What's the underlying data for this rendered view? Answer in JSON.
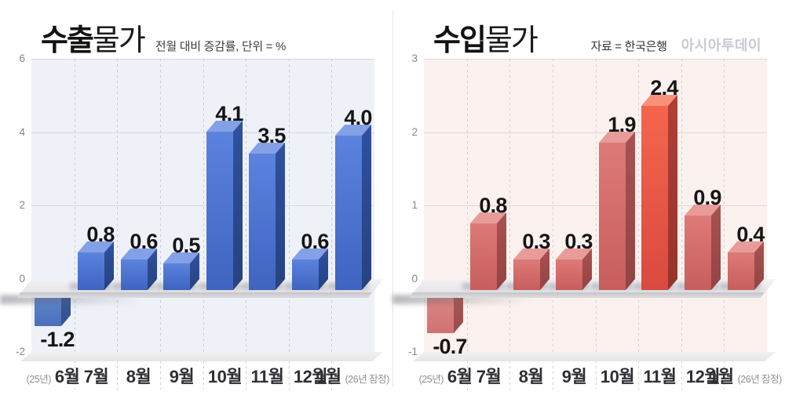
{
  "page": {
    "background": "#ffffff",
    "divider_color": "#e4e4e8"
  },
  "floor": {
    "surface_top": "#f3f3f5",
    "surface_bottom": "#e4e4e8",
    "bevel_top": "#c6c6cb",
    "bevel_bottom": "#dddde0",
    "strip_top": "#f0f0f2",
    "strip_bottom": "#e6e6e9",
    "shadow": "rgba(96,98,108,0.45)",
    "bar_shadow": "rgba(70,76,95,0.28)"
  },
  "chart_data": [
    {
      "type": "bar",
      "title": "수출물가",
      "title_bold": "수출",
      "title_regular": "물가",
      "subtitle": "전월 대비 증감률, 단위 = %",
      "source": "",
      "brand": "",
      "categories": [
        "6월",
        "7월",
        "8월",
        "9월",
        "10월",
        "11월",
        "12월",
        "1월"
      ],
      "first_category_prefix": "(25년)",
      "last_category_suffix": "(26년 잠정)",
      "values": [
        -1.2,
        0.8,
        0.6,
        0.5,
        4.1,
        3.5,
        0.6,
        4.0
      ],
      "value_labels": [
        "-1.2",
        "0.8",
        "0.6",
        "0.5",
        "4.1",
        "3.5",
        "0.6",
        "4.0"
      ],
      "xlabel": "",
      "ylabel": "",
      "ylim": [
        -2,
        6
      ],
      "yticks": [
        6,
        4,
        2,
        0,
        -2
      ],
      "ytick_labels": [
        "6",
        "4",
        "2",
        "0",
        "-2"
      ],
      "grid": true,
      "legend": null,
      "highlight_index": null,
      "colors": {
        "plot_bg": "#eef1f8",
        "grid": "#d6d8dd",
        "dash": "#c7cad2",
        "bar_front_top": "#5b83de",
        "bar_front_bottom": "#3e64c0",
        "bar_top_face": "#84a0e7",
        "bar_side_top": "#30509f",
        "bar_side_bottom": "#264280",
        "neg_front_top": "#6189d1",
        "neg_front_bottom": "#4b70ba",
        "neg_side_top": "#3a5c9e",
        "neg_side_bottom": "#32508b"
      }
    },
    {
      "type": "bar",
      "title": "수입물가",
      "title_bold": "수입",
      "title_regular": "물가",
      "subtitle": "",
      "source": "자료 = 한국은행",
      "brand": "아시아투데이",
      "categories": [
        "6월",
        "7월",
        "8월",
        "9월",
        "10월",
        "11월",
        "12월",
        "1월"
      ],
      "first_category_prefix": "(25년)",
      "last_category_suffix": "(26년 잠정)",
      "values": [
        -0.7,
        0.8,
        0.3,
        0.3,
        1.9,
        2.4,
        0.9,
        0.4
      ],
      "value_labels": [
        "-0.7",
        "0.8",
        "0.3",
        "0.3",
        "1.9",
        "2.4",
        "0.9",
        "0.4"
      ],
      "xlabel": "",
      "ylabel": "",
      "ylim": [
        -1,
        3
      ],
      "yticks": [
        3,
        2,
        1,
        0,
        -1
      ],
      "ytick_labels": [
        "3",
        "2",
        "1",
        "0",
        "-1"
      ],
      "grid": true,
      "legend": null,
      "highlight_index": 5,
      "colors": {
        "plot_bg": "#fbf1ef",
        "grid": "#e1d7d5",
        "dash": "#d8cdca",
        "bar_front_top": "#dd7a78",
        "bar_front_bottom": "#c75e5d",
        "bar_top_face": "#e79c99",
        "bar_side_top": "#a95150",
        "bar_side_bottom": "#934443",
        "neg_front_top": "#de8886",
        "neg_front_bottom": "#d07372",
        "neg_side_top": "#aa5a59",
        "neg_side_bottom": "#9a4e4d",
        "highlight_front_top": "#f5654c",
        "highlight_front_bottom": "#d94a40",
        "highlight_top_face": "#f7917a",
        "highlight_side_top": "#b03f36",
        "highlight_side_bottom": "#97322c"
      }
    }
  ]
}
